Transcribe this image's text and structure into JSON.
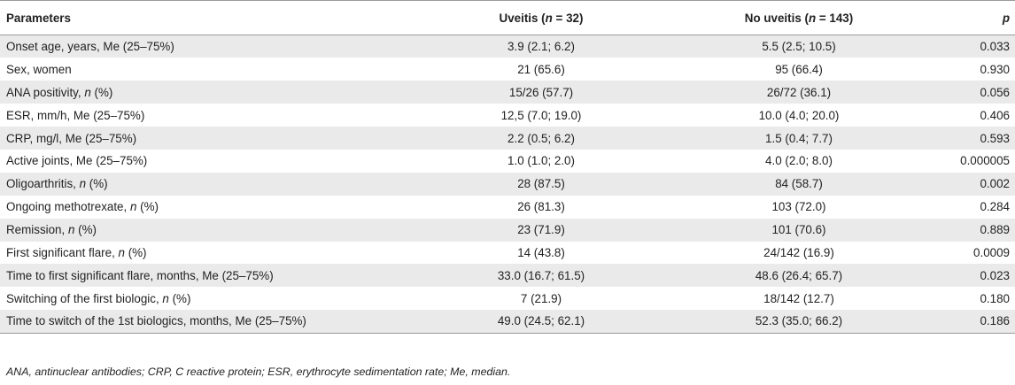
{
  "table": {
    "headers": {
      "parameters": "Parameters",
      "uveitis_prefix": "Uveitis (",
      "uveitis_n": "n",
      "uveitis_suffix": " = 32)",
      "no_uveitis_prefix": "No uveitis (",
      "no_uveitis_n": "n",
      "no_uveitis_suffix": " = 143)",
      "p": "p"
    },
    "rows": [
      {
        "param": "Onset age, years, Me (25–75%)",
        "uveitis": "3.9 (2.1; 6.2)",
        "no_uveitis": "5.5 (2.5; 10.5)",
        "p": "0.033"
      },
      {
        "param": "Sex, women",
        "uveitis": "21 (65.6)",
        "no_uveitis": "95 (66.4)",
        "p": "0.930"
      },
      {
        "param_prefix": "ANA positivity, ",
        "param_italic": "n",
        "param_suffix": " (%)",
        "uveitis": "15/26 (57.7)",
        "no_uveitis": "26/72 (36.1)",
        "p": "0.056"
      },
      {
        "param": "ESR, mm/h, Me (25–75%)",
        "uveitis": "12,5 (7.0; 19.0)",
        "no_uveitis": "10.0 (4.0; 20.0)",
        "p": "0.406"
      },
      {
        "param": "CRP, mg/l, Me (25–75%)",
        "uveitis": "2.2 (0.5; 6.2)",
        "no_uveitis": "1.5 (0.4; 7.7)",
        "p": "0.593"
      },
      {
        "param": "Active joints, Me (25–75%)",
        "uveitis": "1.0 (1.0; 2.0)",
        "no_uveitis": "4.0 (2.0; 8.0)",
        "p": "0.000005"
      },
      {
        "param_prefix": "Oligoarthritis, ",
        "param_italic": "n",
        "param_suffix": " (%)",
        "uveitis": "28 (87.5)",
        "no_uveitis": "84 (58.7)",
        "p": "0.002"
      },
      {
        "param_prefix": "Ongoing methotrexate, ",
        "param_italic": "n",
        "param_suffix": " (%)",
        "uveitis": "26 (81.3)",
        "no_uveitis": "103 (72.0)",
        "p": "0.284"
      },
      {
        "param_prefix": "Remission, ",
        "param_italic": "n",
        "param_suffix": " (%)",
        "uveitis": "23 (71.9)",
        "no_uveitis": "101 (70.6)",
        "p": "0.889"
      },
      {
        "param_prefix": "First significant flare, ",
        "param_italic": "n",
        "param_suffix": " (%)",
        "uveitis": "14 (43.8)",
        "no_uveitis": "24/142 (16.9)",
        "p": "0.0009"
      },
      {
        "param": "Time to first significant flare, months, Me (25–75%)",
        "uveitis": "33.0 (16.7; 61.5)",
        "no_uveitis": "48.6 (26.4; 65.7)",
        "p": "0.023"
      },
      {
        "param_prefix": "Switching of the first biologic, ",
        "param_italic": "n",
        "param_suffix": " (%)",
        "uveitis": "7 (21.9)",
        "no_uveitis": "18/142 (12.7)",
        "p": "0.180"
      },
      {
        "param": "Time to switch of the 1st biologics, months, Me (25–75%)",
        "uveitis": "49.0 (24.5; 62.1)",
        "no_uveitis": "52.3 (35.0; 66.2)",
        "p": "0.186"
      }
    ]
  },
  "footnote": "ANA, antinuclear antibodies; CRP, C reactive protein; ESR, erythrocyte sedimentation rate; Me, median."
}
